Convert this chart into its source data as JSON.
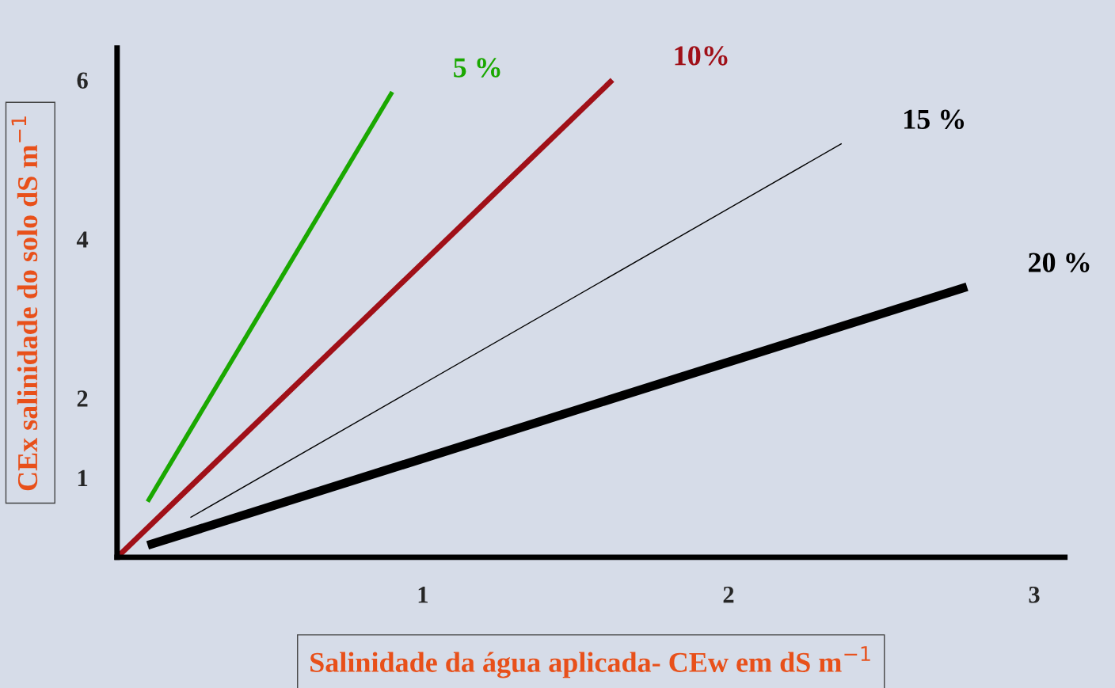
{
  "chart_data": {
    "type": "line",
    "xlabel": "Salinidade da água aplicada- CEw em dS m$^{−1}$",
    "ylabel": "CEx salinidade do solo dS m$^{−1}$",
    "xlim": [
      0,
      3.1
    ],
    "ylim": [
      0,
      6.4
    ],
    "xticks": [
      1,
      2,
      3
    ],
    "yticks": [
      1,
      2,
      4,
      6
    ],
    "grid": false,
    "legend": false,
    "marker": "none",
    "line_style": "solid",
    "series": [
      {
        "name": "5 %",
        "color": "#1aa800",
        "x": [
          0.1,
          0.9
        ],
        "values": [
          0.7,
          5.85
        ]
      },
      {
        "name": "10%",
        "color": "#a01018",
        "x": [
          0,
          1.62
        ],
        "values": [
          0,
          6
        ]
      },
      {
        "name": "15 %",
        "color": "#000000",
        "x": [
          0.24,
          2.37
        ],
        "values": [
          0.5,
          5.2
        ]
      },
      {
        "name": "20 %",
        "color": "#000000",
        "x": [
          0.1,
          2.78
        ],
        "values": [
          0.15,
          3.4
        ]
      }
    ]
  }
}
